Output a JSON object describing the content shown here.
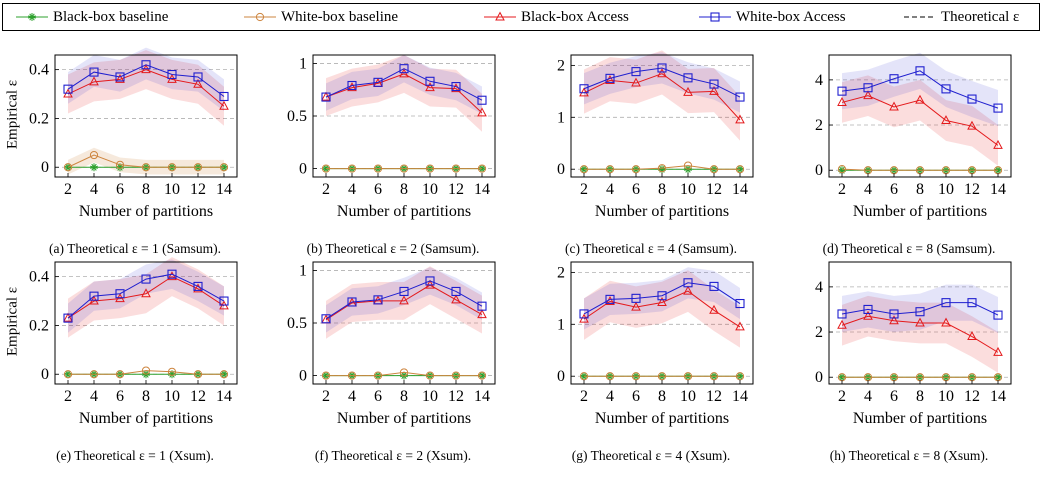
{
  "legend": [
    {
      "label": "Black-box baseline",
      "color": "#2ca02c",
      "marker": "star",
      "dash": false
    },
    {
      "label": "White-box baseline",
      "color": "#cd853f",
      "marker": "circle",
      "dash": false
    },
    {
      "label": "Black-box Access",
      "color": "#e41a1c",
      "marker": "triangle",
      "dash": false
    },
    {
      "label": "White-box Access",
      "color": "#1f1fcf",
      "marker": "square",
      "dash": false
    },
    {
      "label": "Theoretical ε",
      "color": "#000000",
      "marker": "none",
      "dash": true
    }
  ],
  "chart_data": [
    {
      "type": "line",
      "caption": "(a) Theoretical ε = 1 (Samsum).",
      "xlabel": "Number of partitions",
      "ylabel": "Empirical ε",
      "x": [
        2,
        4,
        6,
        8,
        10,
        12,
        14
      ],
      "ylim": [
        -0.04,
        0.46
      ],
      "yticks": [
        0,
        0.2,
        0.4
      ],
      "yticklabels": [
        "0",
        "0.2",
        "0.4"
      ],
      "series": [
        {
          "name": "Black-box baseline",
          "values": [
            0,
            0,
            0,
            0,
            0,
            0,
            0
          ],
          "band": [
            0,
            0
          ]
        },
        {
          "name": "White-box baseline",
          "values": [
            0,
            0.05,
            0.01,
            0,
            0,
            0,
            0
          ],
          "band": [
            0.03,
            0.03
          ]
        },
        {
          "name": "Black-box Access",
          "values": [
            0.3,
            0.35,
            0.36,
            0.4,
            0.36,
            0.34,
            0.25
          ],
          "band": [
            0.08,
            0.08
          ]
        },
        {
          "name": "White-box Access",
          "values": [
            0.32,
            0.39,
            0.37,
            0.42,
            0.38,
            0.37,
            0.29
          ],
          "band": [
            0.06,
            0.07
          ]
        }
      ]
    },
    {
      "type": "line",
      "caption": "(b) Theoretical ε = 2 (Samsum).",
      "xlabel": "Number of partitions",
      "ylabel": "",
      "x": [
        2,
        4,
        6,
        8,
        10,
        12,
        14
      ],
      "ylim": [
        -0.08,
        1.08
      ],
      "yticks": [
        0,
        0.5,
        1
      ],
      "yticklabels": [
        "0",
        "0.5",
        "1"
      ],
      "series": [
        {
          "name": "Black-box baseline",
          "values": [
            0,
            0,
            0,
            0,
            0,
            0,
            0
          ],
          "band": [
            0,
            0
          ]
        },
        {
          "name": "White-box baseline",
          "values": [
            0,
            0,
            0,
            0,
            0,
            0,
            0
          ],
          "band": [
            0,
            0
          ]
        },
        {
          "name": "Black-box Access",
          "values": [
            0.68,
            0.77,
            0.81,
            0.9,
            0.77,
            0.76,
            0.53
          ],
          "band": [
            0.18,
            0.18
          ]
        },
        {
          "name": "White-box Access",
          "values": [
            0.68,
            0.79,
            0.82,
            0.95,
            0.83,
            0.78,
            0.65
          ],
          "band": [
            0.13,
            0.13
          ]
        }
      ]
    },
    {
      "type": "line",
      "caption": "(c) Theoretical ε = 4 (Samsum).",
      "xlabel": "Number of partitions",
      "ylabel": "",
      "x": [
        2,
        4,
        6,
        8,
        10,
        12,
        14
      ],
      "ylim": [
        -0.15,
        2.2
      ],
      "yticks": [
        0,
        1,
        2
      ],
      "yticklabels": [
        "0",
        "1",
        "2"
      ],
      "series": [
        {
          "name": "Black-box baseline",
          "values": [
            0,
            0,
            0,
            0,
            0,
            0,
            0
          ],
          "band": [
            0,
            0
          ]
        },
        {
          "name": "White-box baseline",
          "values": [
            0,
            0,
            0,
            0.02,
            0.07,
            0,
            0
          ],
          "band": [
            0,
            0
          ]
        },
        {
          "name": "Black-box Access",
          "values": [
            1.47,
            1.71,
            1.66,
            1.84,
            1.48,
            1.5,
            0.95
          ],
          "band": [
            0.4,
            0.45
          ]
        },
        {
          "name": "White-box Access",
          "values": [
            1.55,
            1.75,
            1.88,
            1.95,
            1.76,
            1.64,
            1.39
          ],
          "band": [
            0.3,
            0.3
          ]
        }
      ]
    },
    {
      "type": "line",
      "caption": "(d) Theoretical ε = 8 (Samsum).",
      "xlabel": "Number of partitions",
      "ylabel": "",
      "x": [
        2,
        4,
        6,
        8,
        10,
        12,
        14
      ],
      "ylim": [
        -0.3,
        5.1
      ],
      "yticks": [
        0,
        2,
        4
      ],
      "yticklabels": [
        "0",
        "2",
        "4"
      ],
      "series": [
        {
          "name": "Black-box baseline",
          "values": [
            0,
            0,
            0,
            0,
            0,
            0,
            0
          ],
          "band": [
            0,
            0
          ]
        },
        {
          "name": "White-box baseline",
          "values": [
            0.05,
            0,
            0,
            0,
            0,
            0,
            0
          ],
          "band": [
            0,
            0
          ]
        },
        {
          "name": "Black-box Access",
          "values": [
            3.0,
            3.3,
            2.8,
            3.1,
            2.2,
            1.95,
            1.1
          ],
          "band": [
            0.9,
            0.9
          ]
        },
        {
          "name": "White-box Access",
          "values": [
            3.5,
            3.65,
            4.05,
            4.4,
            3.6,
            3.15,
            2.75
          ],
          "band": [
            0.8,
            0.8
          ]
        }
      ]
    },
    {
      "type": "line",
      "caption": "(e) Theoretical ε = 1 (Xsum).",
      "xlabel": "Number of partitions",
      "ylabel": "Empirical ε",
      "x": [
        2,
        4,
        6,
        8,
        10,
        12,
        14
      ],
      "ylim": [
        -0.04,
        0.46
      ],
      "yticks": [
        0,
        0.2,
        0.4
      ],
      "yticklabels": [
        "0",
        "0.2",
        "0.4"
      ],
      "series": [
        {
          "name": "Black-box baseline",
          "values": [
            0,
            0,
            0,
            0,
            0,
            0,
            0
          ],
          "band": [
            0,
            0
          ]
        },
        {
          "name": "White-box baseline",
          "values": [
            0,
            0,
            0,
            0.015,
            0.01,
            0,
            0
          ],
          "band": [
            0,
            0
          ]
        },
        {
          "name": "Black-box Access",
          "values": [
            0.23,
            0.3,
            0.31,
            0.33,
            0.4,
            0.35,
            0.28
          ],
          "band": [
            0.08,
            0.08
          ]
        },
        {
          "name": "White-box Access",
          "values": [
            0.23,
            0.32,
            0.33,
            0.39,
            0.41,
            0.36,
            0.3
          ],
          "band": [
            0.06,
            0.06
          ]
        }
      ]
    },
    {
      "type": "line",
      "caption": "(f) Theoretical ε = 2 (Xsum).",
      "xlabel": "Number of partitions",
      "ylabel": "",
      "x": [
        2,
        4,
        6,
        8,
        10,
        12,
        14
      ],
      "ylim": [
        -0.08,
        1.08
      ],
      "yticks": [
        0,
        0.5,
        1
      ],
      "yticklabels": [
        "0",
        "0.5",
        "1"
      ],
      "series": [
        {
          "name": "Black-box baseline",
          "values": [
            0,
            0,
            0,
            0,
            0,
            0,
            0
          ],
          "band": [
            0,
            0
          ]
        },
        {
          "name": "White-box baseline",
          "values": [
            0,
            0,
            0,
            0.03,
            0,
            0,
            0
          ],
          "band": [
            0,
            0
          ]
        },
        {
          "name": "Black-box Access",
          "values": [
            0.53,
            0.69,
            0.71,
            0.71,
            0.86,
            0.72,
            0.58
          ],
          "band": [
            0.18,
            0.18
          ]
        },
        {
          "name": "White-box Access",
          "values": [
            0.54,
            0.7,
            0.72,
            0.8,
            0.9,
            0.8,
            0.66
          ],
          "band": [
            0.13,
            0.13
          ]
        }
      ]
    },
    {
      "type": "line",
      "caption": "(g) Theoretical ε = 4 (Xsum).",
      "xlabel": "Number of partitions",
      "ylabel": "",
      "x": [
        2,
        4,
        6,
        8,
        10,
        12,
        14
      ],
      "ylim": [
        -0.15,
        2.2
      ],
      "yticks": [
        0,
        1,
        2
      ],
      "yticklabels": [
        "0",
        "1",
        "2"
      ],
      "series": [
        {
          "name": "Black-box baseline",
          "values": [
            0,
            0,
            0,
            0,
            0,
            0,
            0
          ],
          "band": [
            0,
            0
          ]
        },
        {
          "name": "White-box baseline",
          "values": [
            0,
            0,
            0,
            0,
            0,
            0,
            0
          ],
          "band": [
            0,
            0
          ]
        },
        {
          "name": "Black-box Access",
          "values": [
            1.1,
            1.44,
            1.33,
            1.42,
            1.64,
            1.27,
            0.95
          ],
          "band": [
            0.4,
            0.4
          ]
        },
        {
          "name": "White-box Access",
          "values": [
            1.2,
            1.48,
            1.5,
            1.55,
            1.8,
            1.73,
            1.4
          ],
          "band": [
            0.3,
            0.3
          ]
        }
      ]
    },
    {
      "type": "line",
      "caption": "(h) Theoretical ε = 8 (Xsum).",
      "xlabel": "Number of partitions",
      "ylabel": "",
      "x": [
        2,
        4,
        6,
        8,
        10,
        12,
        14
      ],
      "ylim": [
        -0.3,
        5.1
      ],
      "yticks": [
        0,
        2,
        4
      ],
      "yticklabels": [
        "0",
        "2",
        "4"
      ],
      "series": [
        {
          "name": "Black-box baseline",
          "values": [
            0,
            0,
            0,
            0,
            0,
            0,
            0
          ],
          "band": [
            0,
            0
          ]
        },
        {
          "name": "White-box baseline",
          "values": [
            0,
            0,
            0,
            0,
            0,
            0,
            0
          ],
          "band": [
            0,
            0
          ]
        },
        {
          "name": "Black-box Access",
          "values": [
            2.3,
            2.7,
            2.5,
            2.4,
            2.4,
            1.8,
            1.1
          ],
          "band": [
            0.9,
            0.9
          ]
        },
        {
          "name": "White-box Access",
          "values": [
            2.8,
            3.0,
            2.8,
            2.9,
            3.3,
            3.3,
            2.75
          ],
          "band": [
            0.8,
            0.8
          ]
        }
      ]
    }
  ]
}
